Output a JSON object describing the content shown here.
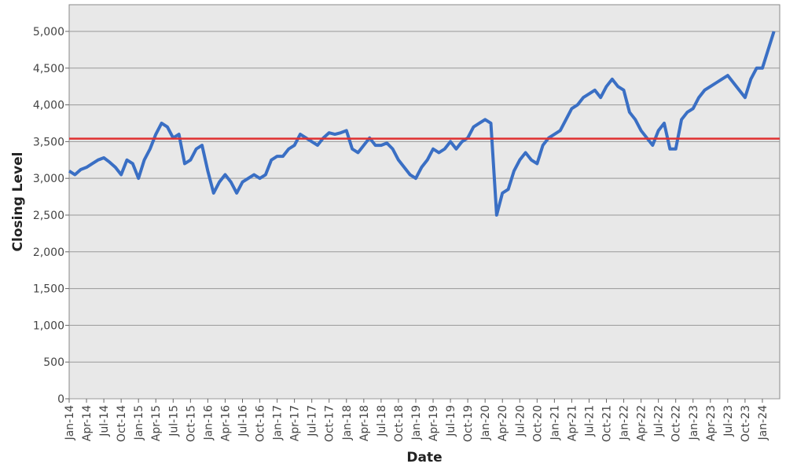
{
  "chart_data": {
    "type": "line",
    "x_label": "Date",
    "y_label": "Closing Level",
    "x": [
      "2014-01",
      "2014-02",
      "2014-03",
      "2014-04",
      "2014-05",
      "2014-06",
      "2014-07",
      "2014-08",
      "2014-09",
      "2014-10",
      "2014-11",
      "2014-12",
      "2015-01",
      "2015-02",
      "2015-03",
      "2015-04",
      "2015-05",
      "2015-06",
      "2015-07",
      "2015-08",
      "2015-09",
      "2015-10",
      "2015-11",
      "2015-12",
      "2016-01",
      "2016-02",
      "2016-03",
      "2016-04",
      "2016-05",
      "2016-06",
      "2016-07",
      "2016-08",
      "2016-09",
      "2016-10",
      "2016-11",
      "2016-12",
      "2017-01",
      "2017-02",
      "2017-03",
      "2017-04",
      "2017-05",
      "2017-06",
      "2017-07",
      "2017-08",
      "2017-09",
      "2017-10",
      "2017-11",
      "2017-12",
      "2018-01",
      "2018-02",
      "2018-03",
      "2018-04",
      "2018-05",
      "2018-06",
      "2018-07",
      "2018-08",
      "2018-09",
      "2018-10",
      "2018-11",
      "2018-12",
      "2019-01",
      "2019-02",
      "2019-03",
      "2019-04",
      "2019-05",
      "2019-06",
      "2019-07",
      "2019-08",
      "2019-09",
      "2019-10",
      "2019-11",
      "2019-12",
      "2020-01",
      "2020-02",
      "2020-03",
      "2020-04",
      "2020-05",
      "2020-06",
      "2020-07",
      "2020-08",
      "2020-09",
      "2020-10",
      "2020-11",
      "2020-12",
      "2021-01",
      "2021-02",
      "2021-03",
      "2021-04",
      "2021-05",
      "2021-06",
      "2021-07",
      "2021-08",
      "2021-09",
      "2021-10",
      "2021-11",
      "2021-12",
      "2022-01",
      "2022-02",
      "2022-03",
      "2022-04",
      "2022-05",
      "2022-06",
      "2022-07",
      "2022-08",
      "2022-09",
      "2022-10",
      "2022-11",
      "2022-12",
      "2023-01",
      "2023-02",
      "2023-03",
      "2023-04",
      "2023-05",
      "2023-06",
      "2023-07",
      "2023-08",
      "2023-09",
      "2023-10",
      "2023-11",
      "2023-12",
      "2024-01",
      "2024-02",
      "2024-03"
    ],
    "series": [
      {
        "color": "#3a6fc4",
        "values": [
          3100,
          3050,
          3120,
          3150,
          3200,
          3250,
          3280,
          3220,
          3150,
          3050,
          3250,
          3200,
          3000,
          3250,
          3400,
          3600,
          3750,
          3700,
          3550,
          3600,
          3200,
          3250,
          3400,
          3450,
          3100,
          2800,
          2950,
          3050,
          2950,
          2800,
          2950,
          3000,
          3050,
          3000,
          3050,
          3250,
          3300,
          3300,
          3400,
          3450,
          3600,
          3550,
          3500,
          3450,
          3550,
          3620,
          3600,
          3620,
          3650,
          3400,
          3350,
          3450,
          3550,
          3450,
          3450,
          3480,
          3400,
          3250,
          3150,
          3050,
          3000,
          3150,
          3250,
          3400,
          3350,
          3400,
          3500,
          3400,
          3500,
          3550,
          3700,
          3750,
          3800,
          3750,
          2500,
          2800,
          2850,
          3100,
          3250,
          3350,
          3250,
          3200,
          3450,
          3550,
          3600,
          3650,
          3800,
          3950,
          4000,
          4100,
          4150,
          4200,
          4100,
          4250,
          4350,
          4250,
          4200,
          3900,
          3800,
          3650,
          3550,
          3450,
          3650,
          3750,
          3400,
          3400,
          3800,
          3900,
          3950,
          4100,
          4200,
          4250,
          4300,
          4350,
          4400,
          4300,
          4200,
          4100,
          4350,
          4500,
          4500,
          4750,
          5000
        ]
      }
    ],
    "reference_line": {
      "value": 3540,
      "color": "#e03030"
    },
    "xlim": [
      "2014-01",
      "2024-03"
    ],
    "xticks": [
      {
        "value": "2014-01",
        "label": "Jan-14"
      },
      {
        "value": "2014-04",
        "label": "Apr-14"
      },
      {
        "value": "2014-07",
        "label": "Jul-14"
      },
      {
        "value": "2014-10",
        "label": "Oct-14"
      },
      {
        "value": "2015-01",
        "label": "Jan-15"
      },
      {
        "value": "2015-04",
        "label": "Apr-15"
      },
      {
        "value": "2015-07",
        "label": "Jul-15"
      },
      {
        "value": "2015-10",
        "label": "Oct-15"
      },
      {
        "value": "2016-01",
        "label": "Jan-16"
      },
      {
        "value": "2016-04",
        "label": "Apr-16"
      },
      {
        "value": "2016-07",
        "label": "Jul-16"
      },
      {
        "value": "2016-10",
        "label": "Oct-16"
      },
      {
        "value": "2017-01",
        "label": "Jan-17"
      },
      {
        "value": "2017-04",
        "label": "Apr-17"
      },
      {
        "value": "2017-07",
        "label": "Jul-17"
      },
      {
        "value": "2017-10",
        "label": "Oct-17"
      },
      {
        "value": "2018-01",
        "label": "Jan-18"
      },
      {
        "value": "2018-04",
        "label": "Apr-18"
      },
      {
        "value": "2018-07",
        "label": "Jul-18"
      },
      {
        "value": "2018-10",
        "label": "Oct-18"
      },
      {
        "value": "2019-01",
        "label": "Jan-19"
      },
      {
        "value": "2019-04",
        "label": "Apr-19"
      },
      {
        "value": "2019-07",
        "label": "Jul-19"
      },
      {
        "value": "2019-10",
        "label": "Oct-19"
      },
      {
        "value": "2020-01",
        "label": "Jan-20"
      },
      {
        "value": "2020-04",
        "label": "Apr-20"
      },
      {
        "value": "2020-07",
        "label": "Jul-20"
      },
      {
        "value": "2020-10",
        "label": "Oct-20"
      },
      {
        "value": "2021-01",
        "label": "Jan-21"
      },
      {
        "value": "2021-04",
        "label": "Apr-21"
      },
      {
        "value": "2021-07",
        "label": "Jul-21"
      },
      {
        "value": "2021-10",
        "label": "Oct-21"
      },
      {
        "value": "2022-01",
        "label": "Jan-22"
      },
      {
        "value": "2022-04",
        "label": "Apr-22"
      },
      {
        "value": "2022-07",
        "label": "Jul-22"
      },
      {
        "value": "2022-10",
        "label": "Oct-22"
      },
      {
        "value": "2023-01",
        "label": "Jan-23"
      },
      {
        "value": "2023-04",
        "label": "Apr-23"
      },
      {
        "value": "2023-07",
        "label": "Jul-23"
      },
      {
        "value": "2023-10",
        "label": "Oct-23"
      },
      {
        "value": "2024-01",
        "label": "Jan-24"
      }
    ],
    "ylim": [
      0,
      5363
    ],
    "yticks": [
      0,
      500,
      {
        "value": 1000,
        "label": "1,000"
      },
      {
        "value": 1500,
        "label": "1,500"
      },
      {
        "value": 2000,
        "label": "2,000"
      },
      {
        "value": 2500,
        "label": "2,500"
      },
      {
        "value": 3000,
        "label": "3,000"
      },
      {
        "value": 3500,
        "label": "3,500"
      },
      {
        "value": 4000,
        "label": "4,000"
      },
      {
        "value": 4500,
        "label": "4,500"
      },
      {
        "value": 5000,
        "label": "5,000"
      }
    ],
    "grid": true
  }
}
